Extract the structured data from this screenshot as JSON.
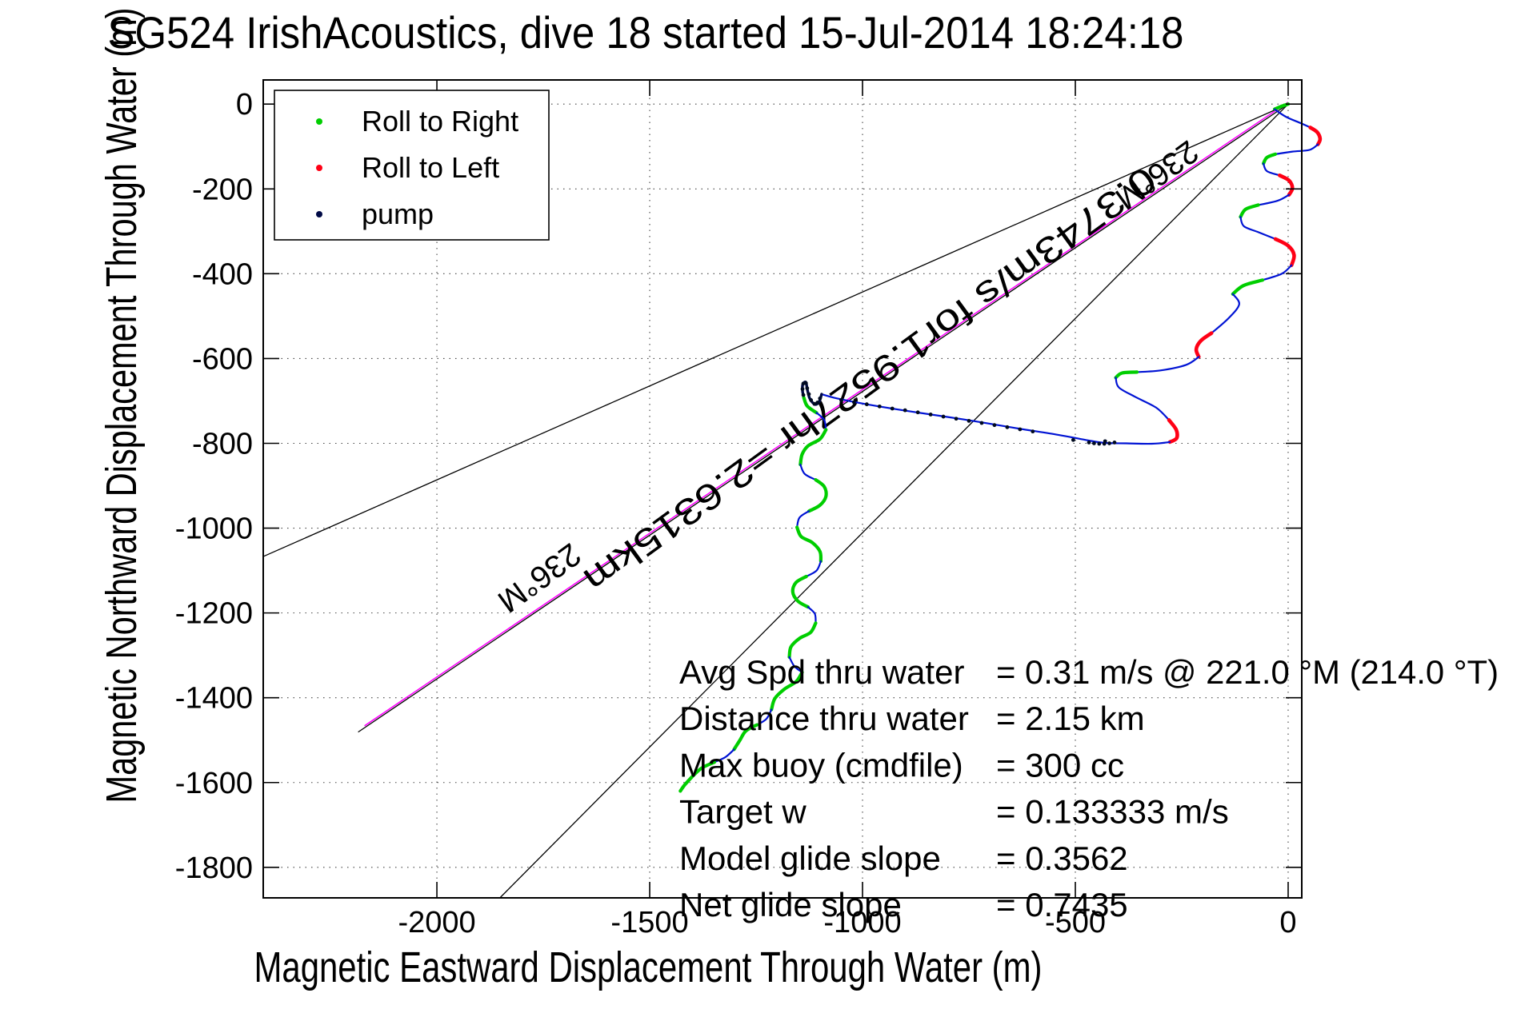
{
  "chart_data": {
    "type": "line",
    "title": "SG524 IrishAcoustics, dive 18 started 15-Jul-2014 18:24:18",
    "xlabel": "Magnetic Eastward Displacement Through Water (m)",
    "ylabel": "Magnetic Northward Displacement Through Water (m)",
    "x_ticks": [
      -2000,
      -1500,
      -1000,
      -500,
      0
    ],
    "y_ticks": [
      0,
      -200,
      -400,
      -600,
      -800,
      -1000,
      -1200,
      -1400,
      -1600,
      -1800
    ],
    "x_range": [
      -2408,
      32
    ],
    "y_range": [
      -1872,
      57
    ],
    "grid": true,
    "legend": {
      "position": "top-left",
      "entries": [
        {
          "label": "Roll to Right",
          "color": "#00ce00",
          "marker": "dot"
        },
        {
          "label": "Roll to Left",
          "color": "#ff0015",
          "marker": "dot"
        },
        {
          "label": "pump",
          "color": "#000a46",
          "marker": "dot"
        }
      ]
    },
    "bearing_fan_lines": [
      {
        "from": [
          0,
          0
        ],
        "to": [
          -2408,
          -1067
        ]
      },
      {
        "from": [
          0,
          0
        ],
        "to": [
          -1852,
          -1872
        ]
      }
    ],
    "desired_track_line": {
      "from": [
        0,
        0
      ],
      "to": [
        -2185,
        -1481
      ],
      "color": "#000000"
    },
    "displacement_vector": {
      "from": [
        0,
        0
      ],
      "to": [
        -2170,
        -1471
      ],
      "color": "#ff00ff",
      "label": "0.3743m/s for1.9527hr =2.6315km",
      "label_pos": [
        -1000,
        -626
      ],
      "label_rotation_deg": 144
    },
    "bearing_labels": [
      {
        "text": "236°M",
        "pos": [
          -323,
          -147
        ],
        "rotation_deg": 144
      },
      {
        "text": "236°M",
        "pos": [
          -1774,
          -1097
        ],
        "rotation_deg": 144
      }
    ],
    "stats": [
      {
        "label": "Avg Spd thru water",
        "value": "=  0.31 m/s @ 221.0 °M (214.0 °T)"
      },
      {
        "label": "Distance thru water",
        "value": "=  2.15 km"
      },
      {
        "label": "Max buoy (cmdfile)",
        "value": "= 300 cc"
      },
      {
        "label": "Target w",
        "value": "= 0.133333 m/s"
      },
      {
        "label": "Model glide slope",
        "value": "= 0.3562"
      },
      {
        "label": "Net glide slope",
        "value": "= 0.7435"
      }
    ],
    "track": {
      "colors": {
        "b": "#0013d4",
        "g": "#00ce00",
        "r": "#ff0015",
        "k": "#000a46"
      },
      "segments": [
        {
          "c": "g",
          "pts": [
            [
              0,
              0
            ],
            [
              -18,
              -6
            ],
            [
              -32,
              -12
            ]
          ]
        },
        {
          "c": "b",
          "pts": [
            [
              -32,
              -12
            ],
            [
              -5,
              -30
            ],
            [
              30,
              -45
            ],
            [
              52,
              -55
            ]
          ]
        },
        {
          "c": "r",
          "pts": [
            [
              52,
              -55
            ],
            [
              68,
              -66
            ],
            [
              75,
              -82
            ],
            [
              70,
              -95
            ]
          ]
        },
        {
          "c": "b",
          "pts": [
            [
              70,
              -95
            ],
            [
              50,
              -108
            ],
            [
              10,
              -112
            ],
            [
              -30,
              -118
            ]
          ]
        },
        {
          "c": "g",
          "pts": [
            [
              -30,
              -118
            ],
            [
              -50,
              -126
            ],
            [
              -58,
              -140
            ]
          ]
        },
        {
          "c": "b",
          "pts": [
            [
              -58,
              -140
            ],
            [
              -50,
              -158
            ],
            [
              -20,
              -168
            ]
          ]
        },
        {
          "c": "r",
          "pts": [
            [
              -20,
              -168
            ],
            [
              2,
              -180
            ],
            [
              10,
              -198
            ],
            [
              2,
              -214
            ]
          ]
        },
        {
          "c": "b",
          "pts": [
            [
              2,
              -214
            ],
            [
              -25,
              -228
            ],
            [
              -70,
              -238
            ]
          ]
        },
        {
          "c": "g",
          "pts": [
            [
              -70,
              -238
            ],
            [
              -100,
              -248
            ],
            [
              -112,
              -266
            ]
          ]
        },
        {
          "c": "b",
          "pts": [
            [
              -112,
              -266
            ],
            [
              -104,
              -288
            ],
            [
              -70,
              -302
            ],
            [
              -30,
              -318
            ]
          ]
        },
        {
          "c": "r",
          "pts": [
            [
              -30,
              -318
            ],
            [
              0,
              -334
            ],
            [
              14,
              -356
            ],
            [
              8,
              -380
            ]
          ]
        },
        {
          "c": "b",
          "pts": [
            [
              8,
              -380
            ],
            [
              -15,
              -400
            ],
            [
              -60,
              -415
            ]
          ]
        },
        {
          "c": "g",
          "pts": [
            [
              -60,
              -415
            ],
            [
              -105,
              -428
            ],
            [
              -130,
              -448
            ]
          ]
        },
        {
          "c": "b",
          "pts": [
            [
              -130,
              -448
            ],
            [
              -115,
              -472
            ],
            [
              -140,
              -505
            ],
            [
              -180,
              -540
            ]
          ]
        },
        {
          "c": "r",
          "pts": [
            [
              -180,
              -540
            ],
            [
              -205,
              -558
            ],
            [
              -216,
              -578
            ],
            [
              -210,
              -596
            ]
          ]
        },
        {
          "c": "b",
          "pts": [
            [
              -210,
              -596
            ],
            [
              -240,
              -615
            ],
            [
              -300,
              -628
            ],
            [
              -355,
              -632
            ]
          ]
        },
        {
          "c": "g",
          "pts": [
            [
              -355,
              -632
            ],
            [
              -390,
              -634
            ],
            [
              -405,
              -645
            ]
          ]
        },
        {
          "c": "b",
          "pts": [
            [
              -405,
              -645
            ],
            [
              -398,
              -668
            ],
            [
              -360,
              -690
            ],
            [
              -310,
              -716
            ],
            [
              -280,
              -745
            ]
          ]
        },
        {
          "c": "r",
          "pts": [
            [
              -280,
              -745
            ],
            [
              -263,
              -768
            ],
            [
              -262,
              -788
            ],
            [
              -278,
              -797
            ]
          ]
        },
        {
          "c": "b",
          "pts": [
            [
              -278,
              -797
            ],
            [
              -320,
              -801
            ],
            [
              -380,
              -800
            ],
            [
              -430,
              -799
            ],
            [
              -470,
              -793
            ],
            [
              -540,
              -780
            ],
            [
              -640,
              -764
            ],
            [
              -760,
              -744
            ],
            [
              -880,
              -726
            ],
            [
              -990,
              -708
            ],
            [
              -1060,
              -694
            ],
            [
              -1096,
              -684
            ]
          ]
        },
        {
          "c": "k",
          "pts": [
            [
              -1096,
              -684
            ],
            [
              -1102,
              -702
            ],
            [
              -1112,
              -708
            ],
            [
              -1124,
              -694
            ],
            [
              -1130,
              -672
            ],
            [
              -1133,
              -656
            ],
            [
              -1140,
              -660
            ],
            [
              -1141,
              -676
            ],
            [
              -1138,
              -692
            ]
          ]
        },
        {
          "c": "g",
          "pts": [
            [
              -1138,
              -692
            ],
            [
              -1130,
              -712
            ],
            [
              -1108,
              -728
            ]
          ]
        },
        {
          "c": "b",
          "pts": [
            [
              -1108,
              -728
            ],
            [
              -1090,
              -745
            ],
            [
              -1086,
              -768
            ]
          ]
        },
        {
          "c": "g",
          "pts": [
            [
              -1086,
              -768
            ],
            [
              -1100,
              -790
            ],
            [
              -1128,
              -806
            ],
            [
              -1142,
              -826
            ],
            [
              -1146,
              -850
            ]
          ]
        },
        {
          "c": "b",
          "pts": [
            [
              -1146,
              -850
            ],
            [
              -1136,
              -872
            ],
            [
              -1110,
              -886
            ]
          ]
        },
        {
          "c": "g",
          "pts": [
            [
              -1110,
              -886
            ],
            [
              -1090,
              -902
            ],
            [
              -1086,
              -925
            ],
            [
              -1100,
              -946
            ],
            [
              -1126,
              -960
            ]
          ]
        },
        {
          "c": "b",
          "pts": [
            [
              -1126,
              -960
            ],
            [
              -1148,
              -975
            ],
            [
              -1154,
              -998
            ]
          ]
        },
        {
          "c": "g",
          "pts": [
            [
              -1154,
              -998
            ],
            [
              -1144,
              -1020
            ],
            [
              -1118,
              -1034
            ],
            [
              -1100,
              -1055
            ],
            [
              -1098,
              -1078
            ]
          ]
        },
        {
          "c": "b",
          "pts": [
            [
              -1098,
              -1078
            ],
            [
              -1108,
              -1100
            ],
            [
              -1132,
              -1114
            ]
          ]
        },
        {
          "c": "g",
          "pts": [
            [
              -1132,
              -1114
            ],
            [
              -1156,
              -1128
            ],
            [
              -1164,
              -1150
            ],
            [
              -1152,
              -1172
            ],
            [
              -1128,
              -1186
            ]
          ]
        },
        {
          "c": "b",
          "pts": [
            [
              -1128,
              -1186
            ],
            [
              -1112,
              -1202
            ],
            [
              -1110,
              -1224
            ]
          ]
        },
        {
          "c": "g",
          "pts": [
            [
              -1110,
              -1224
            ],
            [
              -1122,
              -1246
            ],
            [
              -1148,
              -1260
            ],
            [
              -1168,
              -1280
            ],
            [
              -1172,
              -1304
            ]
          ]
        },
        {
          "c": "b",
          "pts": [
            [
              -1172,
              -1304
            ],
            [
              -1160,
              -1326
            ],
            [
              -1142,
              -1340
            ]
          ]
        },
        {
          "c": "g",
          "pts": [
            [
              -1142,
              -1340
            ],
            [
              -1156,
              -1362
            ],
            [
              -1184,
              -1380
            ],
            [
              -1206,
              -1402
            ],
            [
              -1214,
              -1428
            ]
          ]
        },
        {
          "c": "b",
          "pts": [
            [
              -1214,
              -1428
            ],
            [
              -1226,
              -1450
            ],
            [
              -1248,
              -1464
            ]
          ]
        },
        {
          "c": "g",
          "pts": [
            [
              -1248,
              -1464
            ],
            [
              -1274,
              -1478
            ],
            [
              -1288,
              -1500
            ],
            [
              -1302,
              -1522
            ]
          ]
        },
        {
          "c": "b",
          "pts": [
            [
              -1302,
              -1522
            ],
            [
              -1322,
              -1540
            ],
            [
              -1348,
              -1552
            ]
          ]
        },
        {
          "c": "g",
          "pts": [
            [
              -1348,
              -1552
            ],
            [
              -1378,
              -1566
            ],
            [
              -1400,
              -1586
            ],
            [
              -1418,
              -1606
            ],
            [
              -1428,
              -1620
            ]
          ]
        }
      ]
    },
    "pump_dots": [
      [
        -408,
        -798
      ],
      [
        -420,
        -800
      ],
      [
        -432,
        -801
      ],
      [
        -444,
        -801
      ],
      [
        -456,
        -800
      ],
      [
        -468,
        -798
      ],
      [
        -430,
        -795
      ],
      [
        -505,
        -792
      ],
      [
        -600,
        -772
      ],
      [
        -630,
        -767
      ],
      [
        -660,
        -762
      ],
      [
        -690,
        -757
      ],
      [
        -720,
        -752
      ],
      [
        -750,
        -747
      ],
      [
        -780,
        -742
      ],
      [
        -810,
        -737
      ],
      [
        -840,
        -732
      ],
      [
        -870,
        -727
      ],
      [
        -900,
        -722
      ],
      [
        -930,
        -718
      ],
      [
        -960,
        -713
      ],
      [
        -990,
        -708
      ],
      [
        -1020,
        -703
      ],
      [
        -1050,
        -698
      ],
      [
        -1100,
        -694
      ],
      [
        -1106,
        -704
      ],
      [
        -1113,
        -707
      ],
      [
        -1121,
        -698
      ],
      [
        -1126,
        -684
      ],
      [
        -1130,
        -670
      ],
      [
        -1133,
        -658
      ],
      [
        -1139,
        -659
      ],
      [
        -1141,
        -672
      ],
      [
        -1139,
        -686
      ]
    ]
  }
}
